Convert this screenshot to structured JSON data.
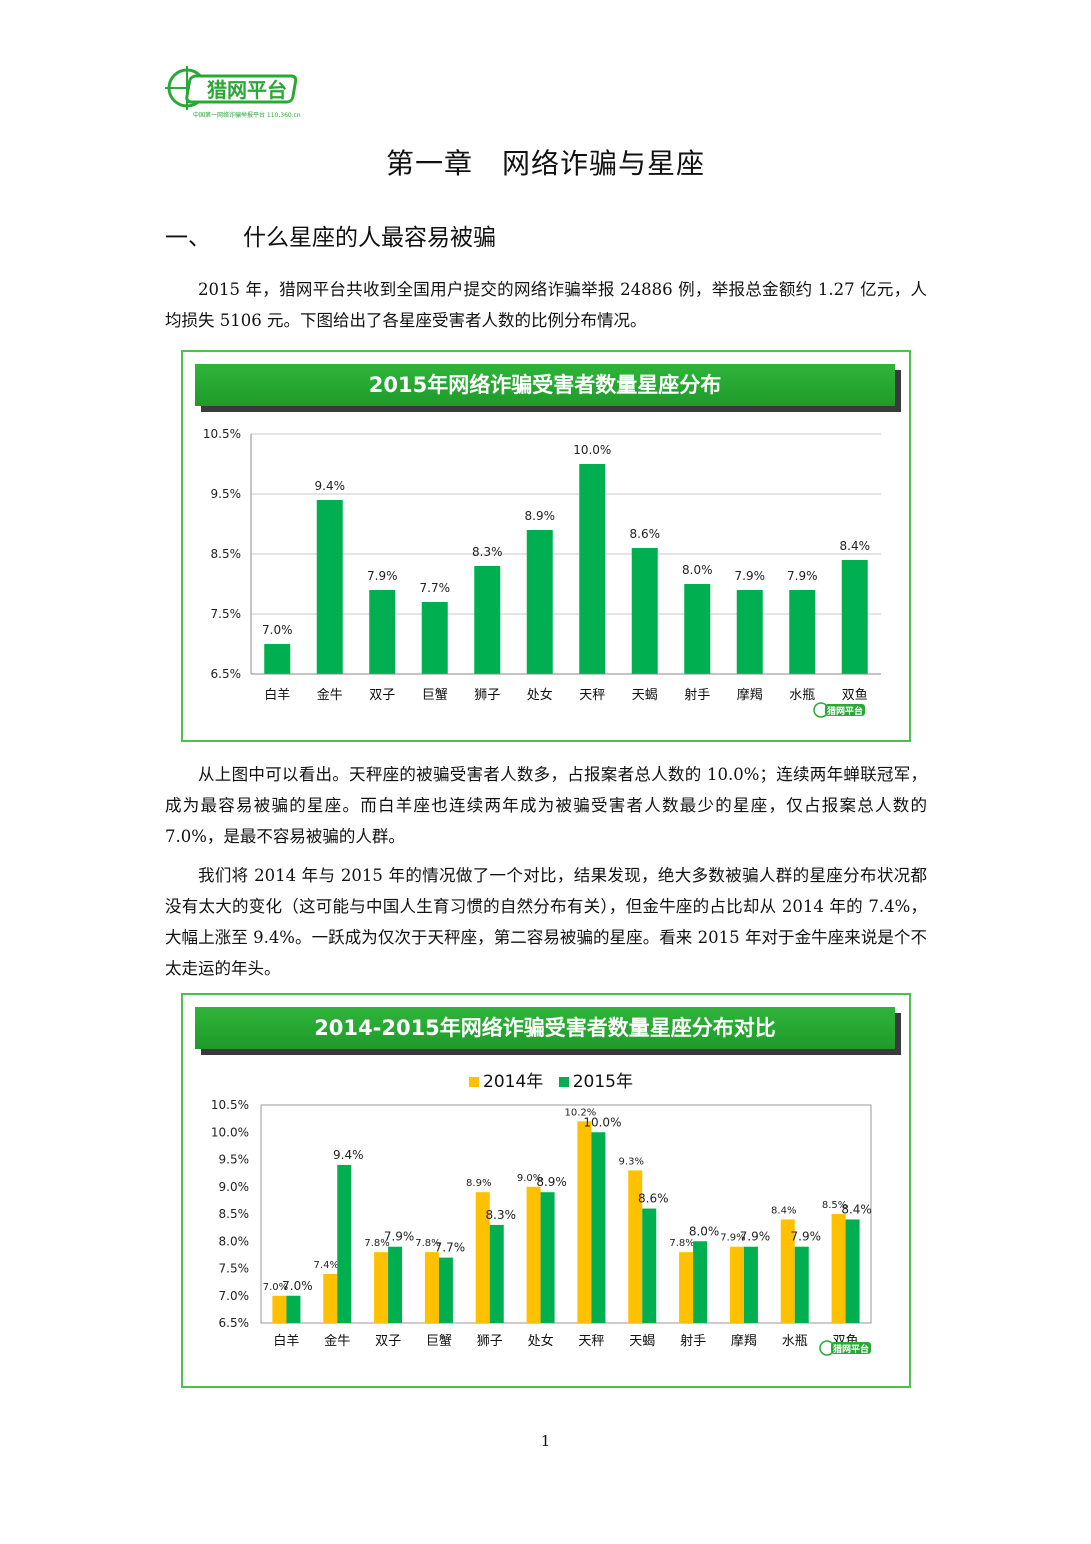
{
  "header": {
    "logo_text": "猎网平台",
    "logo_subtext": "中国第一网络诈骗举报平台 110.360.cn"
  },
  "chapter_title": "第一章　网络诈骗与星座",
  "section": {
    "number": "一、",
    "title": "什么星座的人最容易被骗"
  },
  "paragraphs": {
    "p1": "2015 年，猎网平台共收到全国用户提交的网络诈骗举报 24886 例，举报总金额约 1.27 亿元，人均损失 5106 元。下图给出了各星座受害者人数的比例分布情况。",
    "p2": "从上图中可以看出。天秤座的被骗受害者人数多，占报案者总人数的 10.0%；连续两年蝉联冠军，成为最容易被骗的星座。而白羊座也连续两年成为被骗受害者人数最少的星座，仅占报案总人数的 7.0%，是最不容易被骗的人群。",
    "p3": "我们将 2014 年与 2015 年的情况做了一个对比，结果发现，绝大多数被骗人群的星座分布状况都没有太大的变化（这可能与中国人生育习惯的自然分布有关），但金牛座的占比却从 2014 年的 7.4%，大幅上涨至 9.4%。一跃成为仅次于天秤座，第二容易被骗的星座。看来 2015 年对于金牛座来说是个不太走运的年头。"
  },
  "colors": {
    "green": "#00b050",
    "yellow": "#ffc000",
    "frame": "#4fbf4f"
  },
  "chart_data": [
    {
      "type": "bar",
      "title": "2015年网络诈骗受害者数量星座分布",
      "categories": [
        "白羊",
        "金牛",
        "双子",
        "巨蟹",
        "狮子",
        "处女",
        "天秤",
        "天蝎",
        "射手",
        "摩羯",
        "水瓶",
        "双鱼"
      ],
      "series": [
        {
          "values": [
            7.0,
            9.4,
            7.9,
            7.7,
            8.3,
            8.9,
            10.0,
            8.6,
            8.0,
            7.9,
            7.9,
            8.4
          ]
        }
      ],
      "data_labels": [
        "7.0%",
        "9.4%",
        "7.9%",
        "7.7%",
        "8.3%",
        "8.9%",
        "10.0%",
        "8.6%",
        "8.0%",
        "7.9%",
        "7.9%",
        "8.4%"
      ],
      "yticks": [
        "6.5%",
        "7.5%",
        "8.5%",
        "9.5%",
        "10.5%"
      ],
      "ylim": [
        6.5,
        10.5
      ],
      "grid": true
    },
    {
      "type": "bar",
      "title": "2014-2015年网络诈骗受害者数量星座分布对比",
      "categories": [
        "白羊",
        "金牛",
        "双子",
        "巨蟹",
        "狮子",
        "处女",
        "天秤",
        "天蝎",
        "射手",
        "摩羯",
        "水瓶",
        "双鱼"
      ],
      "series": [
        {
          "name": "2014年",
          "values": [
            7.0,
            7.4,
            7.8,
            7.8,
            8.9,
            9.0,
            10.2,
            9.3,
            7.8,
            7.9,
            8.4,
            8.5
          ],
          "labels": [
            "7.0%",
            "7.4%",
            "7.8%",
            "7.8%",
            "8.9%",
            "9.0%",
            "10.2%",
            "9.3%",
            "7.8%",
            "7.9%",
            "8.4%",
            "8.5%"
          ]
        },
        {
          "name": "2015年",
          "values": [
            7.0,
            9.4,
            7.9,
            7.7,
            8.3,
            8.9,
            10.0,
            8.6,
            8.0,
            7.9,
            7.9,
            8.4
          ],
          "labels": [
            "7.0%",
            "9.4%",
            "7.9%",
            "7.7%",
            "8.3%",
            "8.9%",
            "10.0%",
            "8.6%",
            "8.0%",
            "7.9%",
            "7.9%",
            "8.4%"
          ]
        }
      ],
      "yticks": [
        "6.5%",
        "7.0%",
        "7.5%",
        "8.0%",
        "8.5%",
        "9.0%",
        "9.5%",
        "10.0%",
        "10.5%"
      ],
      "ylim": [
        6.5,
        10.5
      ],
      "legend": "top",
      "grid": false
    }
  ],
  "page_number": "1"
}
